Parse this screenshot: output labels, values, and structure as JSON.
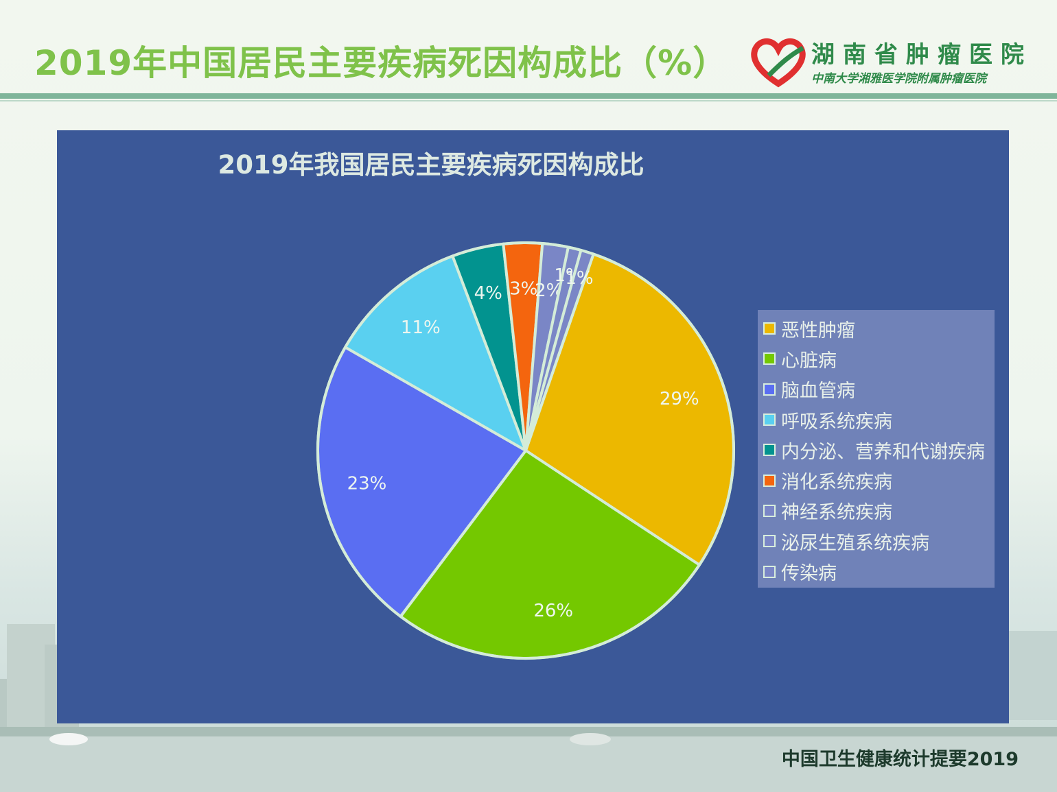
{
  "slide": {
    "title": "2019年中国居民主要疾病死因构成比（%）",
    "source": "中国卫生健康统计提要2019"
  },
  "logo": {
    "name": "湖南省肿瘤医院",
    "subtitle": "中南大学湘雅医学院附属肿瘤医院"
  },
  "chart_data": {
    "type": "pie",
    "title": "2019年我国居民主要疾病死因构成比",
    "legend_position": "right",
    "categories": [
      "恶性肿瘤",
      "心脏病",
      "脑血管病",
      "呼吸系统疾病",
      "内分泌、营养和代谢疾病",
      "消化系统疾病",
      "神经系统疾病",
      "泌尿生殖系统疾病",
      "传染病"
    ],
    "values": [
      29,
      26,
      23,
      11,
      4,
      3,
      2,
      1,
      1
    ],
    "labels": [
      "29%",
      "26%",
      "23%",
      "11%",
      "4%",
      "3%",
      "2%",
      "1%",
      "1%"
    ],
    "colors": [
      "#ecb800",
      "#74c800",
      "#5a6ef2",
      "#5ad0f0",
      "#02938f",
      "#f4650e",
      "#7a86c6",
      "#7a86c6",
      "#7a86c6"
    ],
    "border_color": "#d4ecd8"
  }
}
